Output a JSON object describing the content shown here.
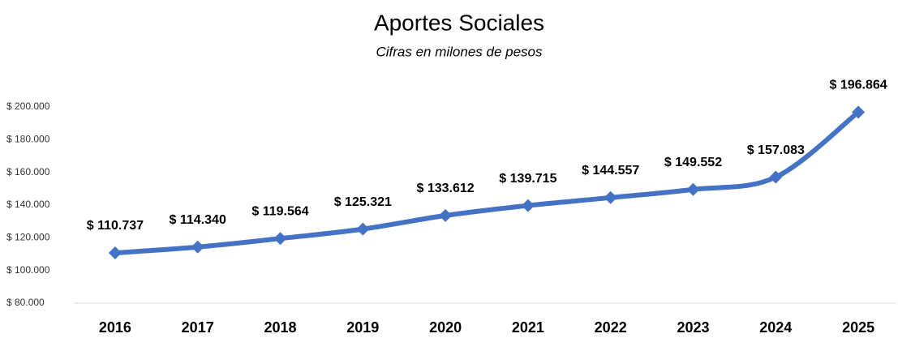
{
  "chart_data": {
    "type": "line",
    "title": "Aportes Sociales",
    "subtitle": "Cifras en milones de pesos",
    "categories": [
      "2016",
      "2017",
      "2018",
      "2019",
      "2020",
      "2021",
      "2022",
      "2023",
      "2024",
      "2025"
    ],
    "series": [
      {
        "name": "Aportes Sociales",
        "color": "#4472c4",
        "values": [
          110737,
          114340,
          119564,
          125321,
          133612,
          139715,
          144557,
          149552,
          157083,
          196864
        ],
        "value_labels": [
          "$ 110.737",
          "$ 114.340",
          "$ 119.564",
          "$ 125.321",
          "$ 133.612",
          "$ 139.715",
          "$ 144.557",
          "$ 149.552",
          "$ 157.083",
          "$ 196.864"
        ]
      }
    ],
    "ylim": [
      80000,
      200000
    ],
    "yticks": [
      {
        "value": 80000,
        "label": "$ 80.000"
      },
      {
        "value": 100000,
        "label": "$ 100.000"
      },
      {
        "value": 120000,
        "label": "$ 120.000"
      },
      {
        "value": 140000,
        "label": "$ 140.000"
      },
      {
        "value": 160000,
        "label": "$ 160.000"
      },
      {
        "value": 180000,
        "label": "$ 180.000"
      },
      {
        "value": 200000,
        "label": "$ 200.000"
      }
    ],
    "grid": false
  }
}
